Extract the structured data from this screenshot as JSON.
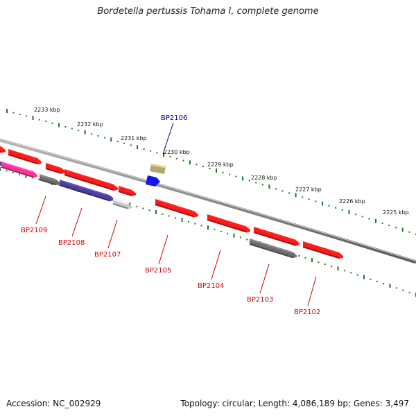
{
  "title": "Bordetella pertussis Tohama I, complete genome",
  "footer": {
    "accession": "Accession: NC_002929",
    "summary": "Topology: circular; Length: 4,086,189 bp; Genes: 3,497"
  },
  "colors": {
    "backbone": "#8a8a8a",
    "tick": "#1f7a1f",
    "gene_red": "#ff1a1a",
    "gene_gray": "#6e6e6e",
    "gene_purple": "#4b3f9c",
    "gene_lightgray": "#c8c8c8",
    "gene_pink": "#ff3399",
    "gene_olive": "#b3a86a",
    "gene_blue": "#1515f0",
    "label_red": "#cc0000",
    "label_blue": "#00008b"
  },
  "kbp_labels": [
    "2233 kbp",
    "2232 kbp",
    "2231 kbp",
    "2230 kbp",
    "2229 kbp",
    "2228 kbp",
    "2227 kbp",
    "2226 kbp",
    "2225 kbp"
  ],
  "gene_labels": [
    "BP2109",
    "BP2108",
    "BP2107",
    "BP2106",
    "BP2105",
    "BP2104",
    "BP2103",
    "BP2102"
  ]
}
